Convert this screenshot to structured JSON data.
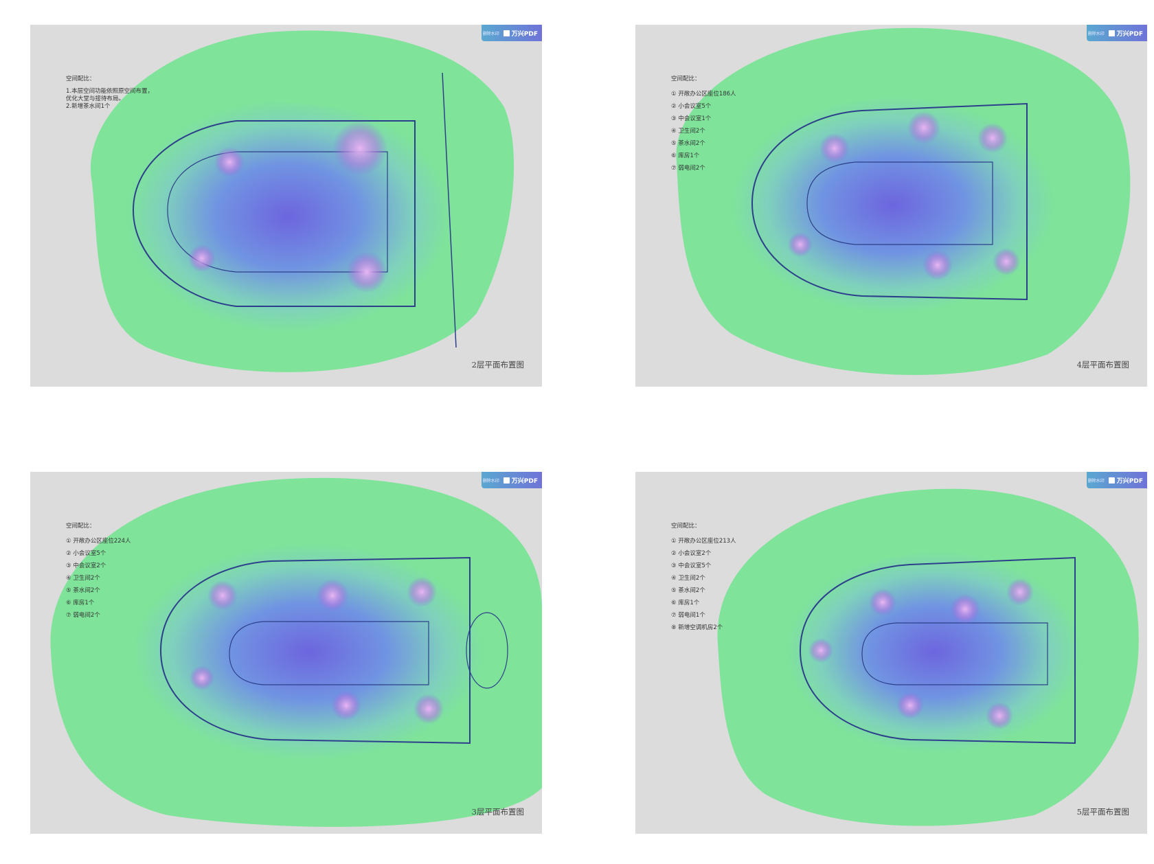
{
  "watermark": {
    "brand": "万兴PDF",
    "sub": "删除水印"
  },
  "colors": {
    "heat_outer": "#7fe39a",
    "heat_mid": "#6f8bea",
    "heat_core": "#6b57e6",
    "plan_line": "#2c3f8a",
    "panel_bg": "#dcdcdc",
    "hotspot": "#c77be0"
  },
  "panels": [
    {
      "caption": "2层平面布置图",
      "legend_title": "空间配比：",
      "legend_items": [
        "1.本层空间功能依照原空间布置，",
        "优化大堂与接待布局。",
        "2.新增茶水间1个"
      ]
    },
    {
      "caption": "4层平面布置图",
      "legend_title": "空间配比：",
      "legend_items": [
        "① 开敞办公区座位186人",
        "② 小会议室5个",
        "③ 中会议室1个",
        "④ 卫生间2个",
        "⑤ 茶水间2个",
        "⑥ 库房1个",
        "⑦ 弱电间2个"
      ]
    },
    {
      "caption": "3层平面布置图",
      "legend_title": "空间配比：",
      "legend_items": [
        "① 开敞办公区座位224人",
        "② 小会议室5个",
        "③ 中会议室2个",
        "④ 卫生间2个",
        "⑤ 茶水间2个",
        "⑥ 库房1个",
        "⑦ 弱电间2个"
      ]
    },
    {
      "caption": "5层平面布置图",
      "legend_title": "空间配比：",
      "legend_items": [
        "① 开敞办公区座位213人",
        "② 小会议室2个",
        "③ 中会议室5个",
        "④ 卫生间2个",
        "⑤ 茶水间2个",
        "⑥ 库房1个",
        "⑦ 弱电间1个",
        "⑧ 新增空调机房2个"
      ]
    }
  ]
}
